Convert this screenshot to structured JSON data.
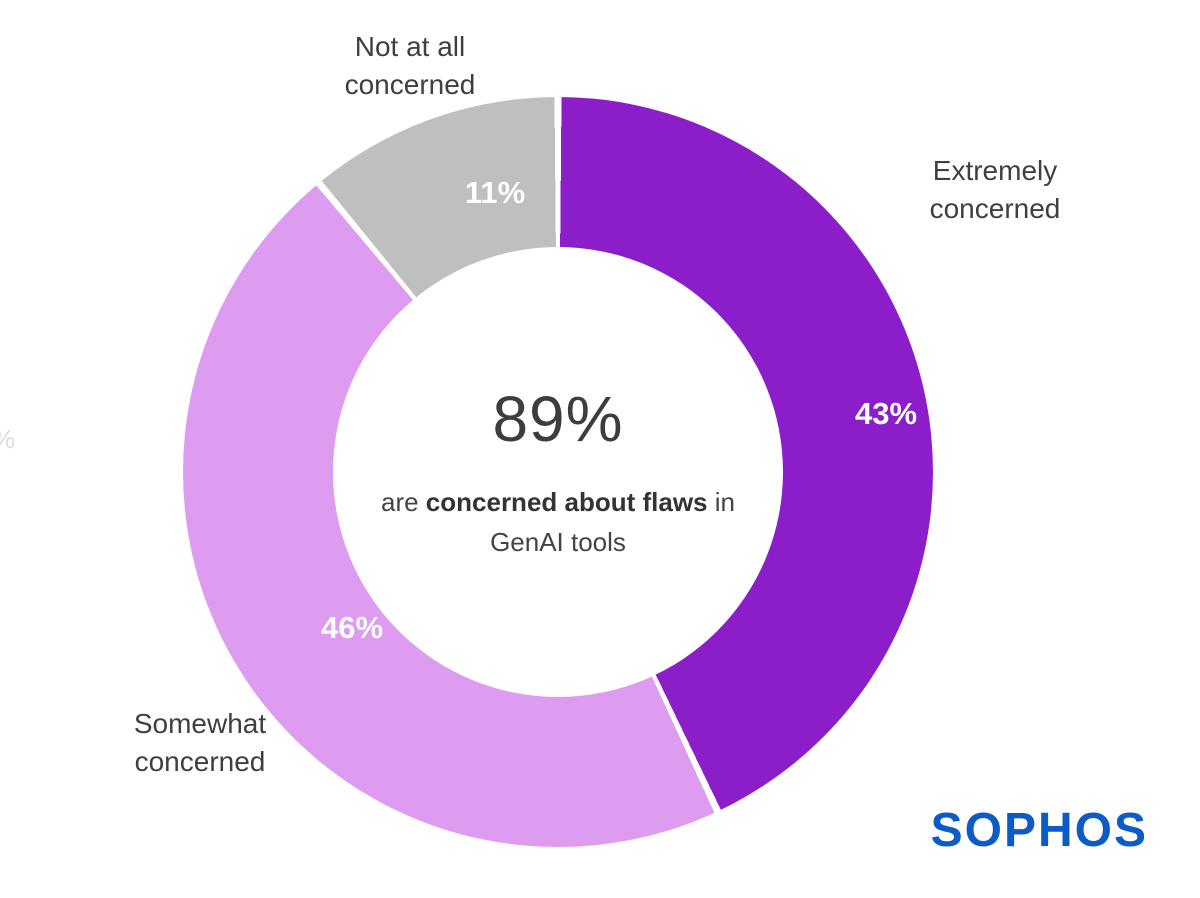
{
  "chart_data": {
    "type": "pie",
    "variant": "donut",
    "start_angle": "top, clockwise",
    "segments": [
      {
        "label": "Extremely concerned",
        "value": 43,
        "value_label": "43%",
        "color": "#8c1ec9"
      },
      {
        "label": "Somewhat concerned",
        "value": 46,
        "value_label": "46%",
        "color": "#dd9cf0"
      },
      {
        "label": "Not at all concerned",
        "value": 11,
        "value_label": "11%",
        "color": "#c0bfc0"
      }
    ],
    "segment_gap_color": "#ffffff",
    "center": {
      "headline": "89%",
      "line1_prefix": "are ",
      "line1_bold": "concerned about flaws",
      "line1_suffix": " in",
      "line2": "GenAI tools"
    }
  },
  "edge_artifact": "%",
  "logo": {
    "text": "SOPHOS",
    "color": "#0d5bc6"
  }
}
